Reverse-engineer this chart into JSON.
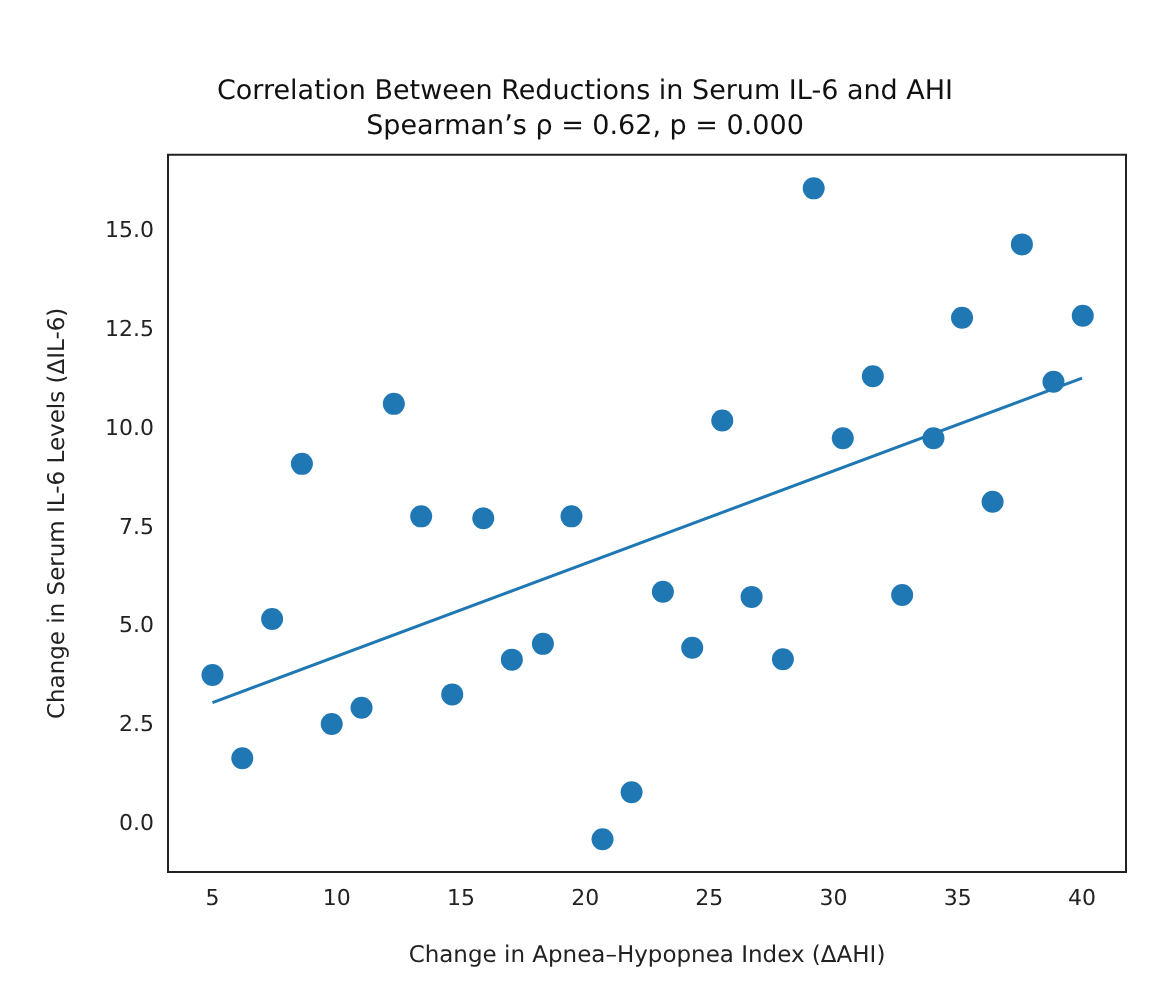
{
  "chart_data": {
    "type": "scatter",
    "title": "Correlation Between Reductions in Serum IL-6 and AHI",
    "subtitle": "Spearman’s ρ = 0.62, p = 0.000",
    "xlabel": "Change in Apnea–Hypopnea Index (ΔAHI)",
    "ylabel": "Change in Serum IL-6 Levels (ΔIL-6)",
    "series": [
      {
        "color": "#1f77b4",
        "marker": "circle",
        "x": [
          5,
          6.2,
          7.4,
          8.6,
          9.8,
          11.0,
          12.3,
          13.4,
          14.65,
          15.9,
          17.05,
          18.3,
          19.45,
          20.7,
          21.87,
          23.13,
          24.31,
          25.52,
          26.7,
          27.96,
          29.2,
          30.37,
          31.58,
          32.76,
          34.02,
          35.17,
          36.4,
          37.58,
          38.85,
          40.03
        ],
        "values": [
          3.77,
          1.66,
          5.19,
          9.12,
          2.53,
          2.94,
          10.64,
          7.79,
          3.28,
          7.74,
          4.16,
          4.56,
          7.79,
          -0.39,
          0.8,
          5.88,
          4.46,
          10.22,
          5.75,
          4.17,
          16.1,
          9.77,
          11.34,
          5.8,
          9.77,
          12.82,
          8.16,
          14.68,
          11.2,
          12.87
        ]
      },
      {
        "type": "line",
        "color": "#1f77b4",
        "marker": "none",
        "x": [
          5,
          40
        ],
        "values": [
          3.07,
          11.29
        ]
      }
    ],
    "xlim": [
      3.21,
      41.77
    ],
    "xticks": [
      5,
      10,
      15,
      20,
      25,
      30,
      35,
      40
    ],
    "ylim": [
      -1.22,
      16.95
    ],
    "yticks": [
      {
        "value": 0,
        "label": "0.0"
      },
      {
        "value": 2.5,
        "label": "2.5"
      },
      {
        "value": 5,
        "label": "5.0"
      },
      {
        "value": 7.5,
        "label": "7.5"
      },
      {
        "value": 10,
        "label": "10.0"
      },
      {
        "value": 12.5,
        "label": "12.5"
      },
      {
        "value": 15,
        "label": "15.0"
      }
    ],
    "grid": false,
    "legend": false,
    "line_style": "solid"
  }
}
